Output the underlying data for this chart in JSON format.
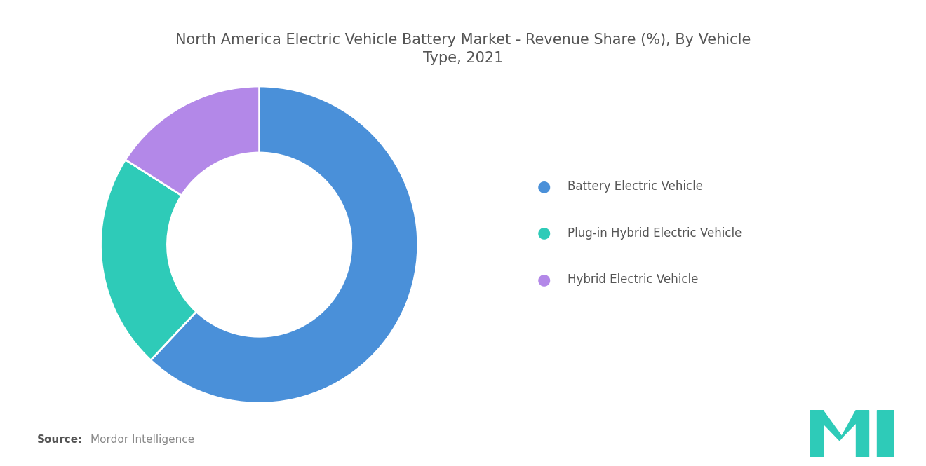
{
  "title": "North America Electric Vehicle Battery Market - Revenue Share (%), By Vehicle\nType, 2021",
  "segments": [
    {
      "label": "Battery Electric Vehicle",
      "value": 62,
      "color": "#4A90D9"
    },
    {
      "label": "Plug-in Hybrid Electric Vehicle",
      "value": 22,
      "color": "#2ECBB8"
    },
    {
      "label": "Hybrid Electric Vehicle",
      "value": 16,
      "color": "#B388E8"
    }
  ],
  "background_color": "#FFFFFF",
  "title_color": "#555555",
  "title_fontsize": 15,
  "legend_fontsize": 12,
  "source_bold": "Source:",
  "source_text": "Mordor Intelligence",
  "source_fontsize": 11,
  "source_color": "#888888",
  "logo_color": "#2ECBB8",
  "wedge_linewidth": 2.0
}
